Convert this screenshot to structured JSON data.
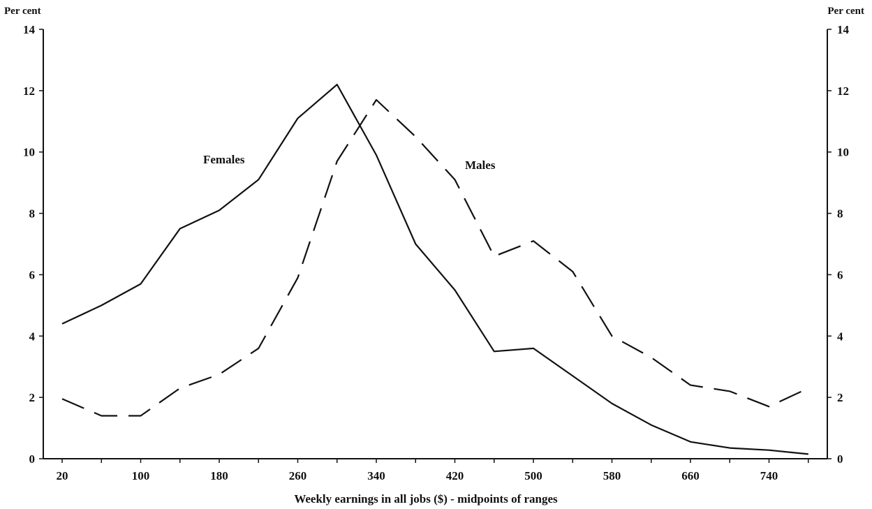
{
  "chart_data": {
    "type": "line",
    "title": "",
    "ylabel_left": "Per cent",
    "ylabel_right": "Per cent",
    "xlabel": "Weekly earnings in all jobs ($) - midpoints of ranges",
    "ylim": [
      0,
      14
    ],
    "y_ticks": [
      "0",
      "2",
      "4",
      "6",
      "8",
      "10",
      "12",
      "14"
    ],
    "xlim": [
      20,
      780
    ],
    "x_ticks": [
      "20",
      "100",
      "180",
      "260",
      "340",
      "420",
      "500",
      "580",
      "660",
      "740"
    ],
    "x": [
      20,
      60,
      100,
      140,
      180,
      220,
      260,
      300,
      340,
      380,
      420,
      460,
      500,
      540,
      580,
      620,
      660,
      700,
      740,
      780
    ],
    "series": [
      {
        "name": "Females",
        "style": "solid",
        "values": [
          4.4,
          5.0,
          5.7,
          7.5,
          8.1,
          9.1,
          11.1,
          12.2,
          9.9,
          7.0,
          5.5,
          3.5,
          3.6,
          2.7,
          1.8,
          1.1,
          0.55,
          0.35,
          0.28,
          0.15
        ]
      },
      {
        "name": "Males",
        "style": "dashed",
        "values": [
          1.95,
          1.4,
          1.4,
          2.3,
          2.75,
          3.6,
          5.9,
          9.7,
          11.7,
          10.5,
          9.1,
          6.6,
          7.1,
          6.1,
          4.0,
          3.3,
          2.4,
          2.2,
          1.7,
          2.3
        ]
      }
    ],
    "annotations": [
      {
        "text": "Females"
      },
      {
        "text": "Males"
      }
    ],
    "grid": false,
    "legend": "inline labels"
  }
}
